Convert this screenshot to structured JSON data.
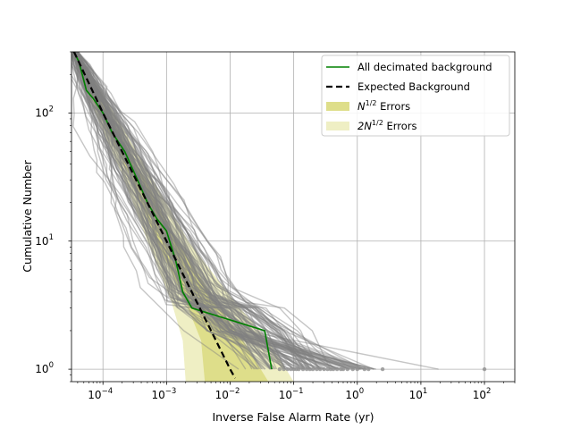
{
  "chart_data": {
    "type": "line",
    "xlabel": "Inverse False Alarm Rate (yr)",
    "ylabel": "Cumulative Number",
    "xscale": "log",
    "yscale": "log",
    "xlim": [
      3.2e-05,
      300
    ],
    "ylim": [
      0.8,
      300
    ],
    "grid": true,
    "legend_position": "top-right",
    "x_ticks": [
      {
        "value": 0.0001,
        "base": "10",
        "exp": "−4"
      },
      {
        "value": 0.001,
        "base": "10",
        "exp": "−3"
      },
      {
        "value": 0.01,
        "base": "10",
        "exp": "−2"
      },
      {
        "value": 0.1,
        "base": "10",
        "exp": "−1"
      },
      {
        "value": 1,
        "base": "10",
        "exp": "0"
      },
      {
        "value": 10,
        "base": "10",
        "exp": "1"
      },
      {
        "value": 100,
        "base": "10",
        "exp": "2"
      }
    ],
    "y_ticks": [
      {
        "value": 1,
        "base": "10",
        "exp": "0"
      },
      {
        "value": 10,
        "base": "10",
        "exp": "1"
      },
      {
        "value": 100,
        "base": "10",
        "exp": "2"
      }
    ],
    "legend": [
      {
        "label": "All decimated background",
        "kind": "line",
        "color": "#008000"
      },
      {
        "label": "Expected Background",
        "kind": "dashed",
        "color": "#000000"
      },
      {
        "label_prefix": "N",
        "label_sup": "1/2",
        "label_suffix": " Errors",
        "kind": "patch",
        "color": "#dede8a"
      },
      {
        "label_prefix": "2N",
        "label_sup": "1/2",
        "label_suffix": " Errors",
        "kind": "patch",
        "color": "#efefc4"
      }
    ],
    "series": [
      {
        "name": "All decimated background",
        "color": "#008000",
        "x": [
          3.5e-05,
          4.2e-05,
          5.5e-05,
          7e-05,
          0.0001,
          0.00014,
          0.00022,
          0.00035,
          0.0005,
          0.0007,
          0.001,
          0.0014,
          0.0018,
          0.0025,
          0.035,
          0.045
        ],
        "y": [
          300,
          250,
          150,
          130,
          100,
          70,
          50,
          30,
          20,
          15,
          12,
          7,
          4,
          3,
          2,
          1
        ]
      },
      {
        "name": "Expected Background",
        "color": "#000000",
        "style": "dashed",
        "x": [
          3.5e-05,
          0.0001,
          0.0003,
          0.001,
          0.003,
          0.006,
          0.01,
          0.012
        ],
        "y": [
          300,
          100,
          33.3,
          10,
          3.33,
          1.67,
          1,
          0.85
        ]
      }
    ],
    "error_bands": [
      {
        "name": "2N1/2",
        "color": "#efefc4",
        "upper": [
          [
            4e-05,
            300
          ],
          [
            0.00015,
            100
          ],
          [
            0.00055,
            33
          ],
          [
            0.0022,
            10
          ],
          [
            0.012,
            3.33
          ],
          [
            0.04,
            1.67
          ],
          [
            0.1,
            0.8
          ]
        ],
        "lower": [
          [
            3.2e-05,
            300
          ],
          [
            7.5e-05,
            100
          ],
          [
            0.0002,
            33
          ],
          [
            0.0005,
            10
          ],
          [
            0.0012,
            3.33
          ],
          [
            0.0018,
            1.67
          ],
          [
            0.002,
            0.8
          ]
        ]
      },
      {
        "name": "N1/2",
        "color": "#dede8a",
        "upper": [
          [
            3.7e-05,
            300
          ],
          [
            0.00012,
            100
          ],
          [
            0.00042,
            33
          ],
          [
            0.0015,
            10
          ],
          [
            0.006,
            3.33
          ],
          [
            0.016,
            1.67
          ],
          [
            0.04,
            0.8
          ]
        ],
        "lower": [
          [
            3.3e-05,
            300
          ],
          [
            8.5e-05,
            100
          ],
          [
            0.00026,
            33
          ],
          [
            0.0007,
            10
          ],
          [
            0.002,
            3.33
          ],
          [
            0.0035,
            1.67
          ],
          [
            0.004,
            0.8
          ]
        ]
      }
    ],
    "scatter_points": {
      "color": "#909090",
      "y": 1,
      "x": [
        0.06,
        0.07,
        0.08,
        0.09,
        0.1,
        0.11,
        0.12,
        0.14,
        0.16,
        0.18,
        0.2,
        0.23,
        0.26,
        0.3,
        0.34,
        0.38,
        0.42,
        0.48,
        0.55,
        0.6,
        0.7,
        0.85,
        1.0,
        1.3,
        1.5,
        2.5,
        100
      ]
    }
  }
}
